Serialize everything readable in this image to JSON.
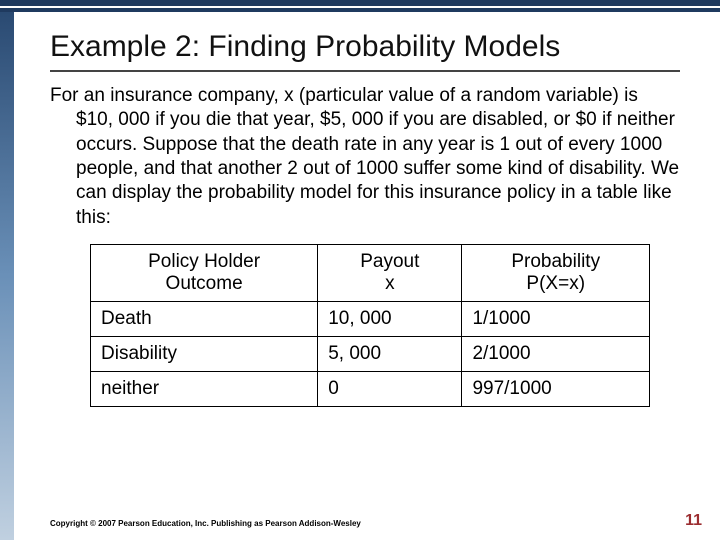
{
  "decor": {
    "top_bar_color": "#1f3a5f",
    "left_gradient_from": "#2a4a72",
    "left_gradient_to": "#c0d0e0"
  },
  "title": "Example 2:  Finding Probability Models",
  "body": "For an insurance company, x (particular value of a random variable) is $10, 000 if you die that year, $5, 000 if you are disabled, or $0 if neither occurs. Suppose that the death rate in any year is 1 out of every 1000 people, and that another 2 out of 1000 suffer some kind of disability.  We can display the probability model for this insurance policy in a table like this:",
  "table": {
    "columns": [
      {
        "line1": "Policy Holder",
        "line2": "Outcome"
      },
      {
        "line1": "Payout",
        "line2": "x"
      },
      {
        "line1": "Probability",
        "line2": "P(X=x)"
      }
    ],
    "rows": [
      [
        "Death",
        "10, 000",
        "1/1000"
      ],
      [
        "Disability",
        "5, 000",
        "2/1000"
      ],
      [
        "neither",
        "0",
        "997/1000"
      ]
    ],
    "border_color": "#000000",
    "font_size": 19
  },
  "copyright": "Copyright © 2007 Pearson Education, Inc. Publishing as Pearson Addison-Wesley",
  "page_number": "11",
  "page_number_color": "#9b2d30"
}
